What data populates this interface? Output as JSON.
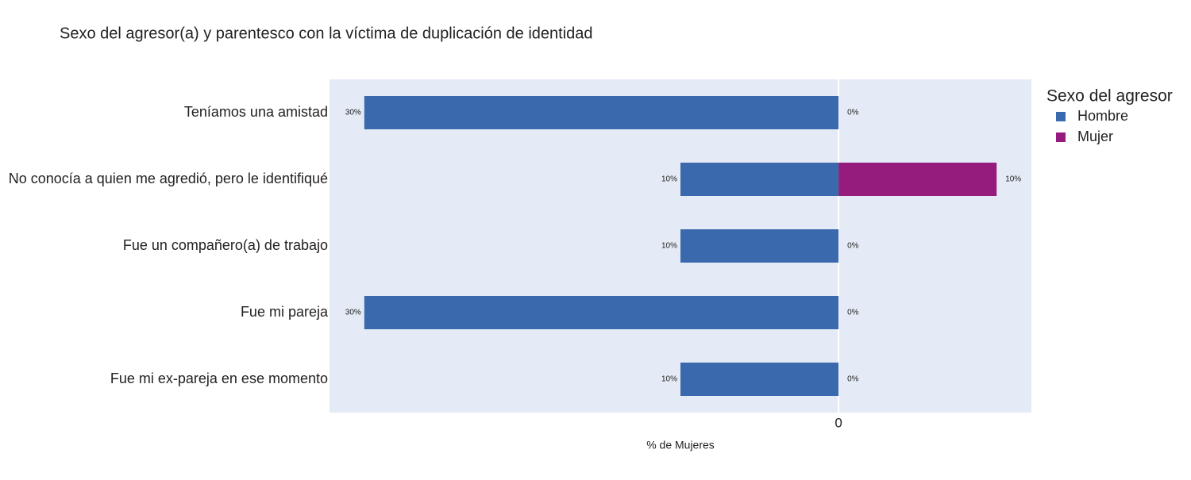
{
  "chart_data": {
    "type": "diverging-bar",
    "title": "Sexo del agresor(a) y parentesco con la víctima de duplicación de identidad",
    "x_label": "% de Mujeres",
    "legend_title": "Sexo del agresor",
    "legend_position": "right",
    "categories": [
      "Teníamos una amistad",
      "No conocía a quien me agredió, pero le identifiqué",
      "Fue un compañero(a) de trabajo",
      "Fue mi pareja",
      "Fue mi ex-pareja en ese momento"
    ],
    "series": [
      {
        "name": "Hombre",
        "color": "#3a69ae",
        "values": [
          -30,
          -10,
          -10,
          -30,
          -10
        ],
        "value_labels": [
          "30%",
          "10%",
          "10%",
          "30%",
          "10%"
        ]
      },
      {
        "name": "Mujer",
        "color": "#951b7d",
        "values": [
          0,
          10,
          0,
          0,
          0
        ],
        "value_labels": [
          "0%",
          "10%",
          "0%",
          "0%",
          "0%"
        ]
      }
    ],
    "xlim": [
      -32.2,
      12.2
    ],
    "xticks": [
      0
    ]
  }
}
